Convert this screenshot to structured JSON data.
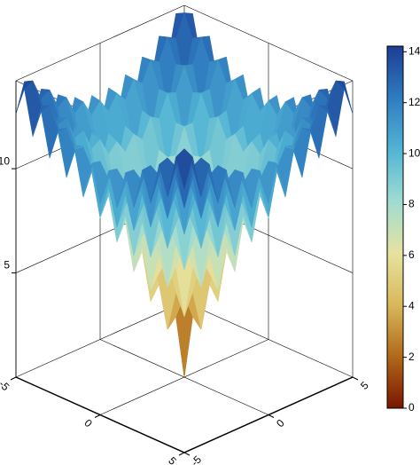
{
  "chart_data": {
    "type": "surface",
    "x": [
      -5,
      -4.5,
      -4,
      -3.5,
      -3,
      -2.5,
      -2,
      -1.5,
      -1,
      -0.5,
      0,
      0.5,
      1,
      1.5,
      2,
      2.5,
      3,
      3.5,
      4,
      4.5,
      5
    ],
    "y": [
      -5,
      -4.5,
      -4,
      -3.5,
      -3,
      -2.5,
      -2,
      -1.5,
      -1,
      -0.5,
      0,
      0.5,
      1,
      1.5,
      2,
      2.5,
      3,
      3.5,
      4,
      4.5,
      5
    ],
    "z": [
      [
        12.64,
        14.0,
        11.91,
        13.28,
        11.23,
        12.65,
        10.66,
        12.16,
        10.28,
        11.89,
        10.14,
        11.89,
        10.28,
        12.16,
        10.66,
        12.65,
        11.23,
        13.28,
        11.91,
        14.0,
        12.64
      ],
      [
        14.0,
        14.22,
        13.18,
        13.42,
        12.41,
        12.69,
        11.75,
        12.12,
        11.3,
        11.81,
        11.13,
        11.81,
        11.3,
        12.12,
        11.75,
        12.69,
        12.41,
        13.42,
        13.18,
        14.22,
        14.0
      ],
      [
        11.91,
        13.18,
        11.01,
        12.29,
        10.14,
        11.46,
        9.37,
        10.79,
        8.84,
        10.41,
        8.64,
        10.41,
        8.84,
        10.79,
        9.37,
        11.46,
        10.14,
        12.29,
        11.01,
        13.18,
        11.91
      ],
      [
        13.28,
        13.42,
        12.29,
        12.42,
        11.3,
        11.46,
        10.41,
        10.68,
        9.77,
        10.22,
        9.53,
        10.22,
        9.77,
        10.68,
        10.41,
        11.46,
        11.3,
        12.42,
        12.29,
        13.42,
        13.28
      ],
      [
        11.23,
        12.41,
        10.14,
        11.3,
        9.02,
        10.21,
        7.99,
        9.27,
        7.21,
        8.71,
        6.92,
        8.71,
        7.21,
        9.27,
        7.99,
        10.21,
        9.02,
        11.3,
        10.14,
        12.41,
        11.23
      ],
      [
        12.65,
        12.69,
        11.46,
        11.46,
        10.21,
        10.22,
        9.0,
        9.11,
        8.05,
        8.4,
        7.67,
        8.4,
        8.05,
        9.11,
        9.0,
        10.22,
        10.21,
        11.46,
        11.46,
        12.69,
        12.65
      ],
      [
        10.66,
        11.75,
        9.37,
        10.41,
        7.99,
        9.0,
        6.59,
        7.67,
        5.42,
        6.78,
        4.93,
        6.78,
        5.42,
        7.67,
        6.59,
        9.0,
        7.99,
        10.41,
        9.37,
        11.75,
        10.66
      ],
      [
        12.16,
        12.12,
        10.79,
        10.68,
        9.27,
        9.11,
        7.67,
        7.53,
        6.22,
        6.36,
        5.54,
        6.36,
        6.22,
        7.53,
        7.67,
        9.11,
        9.27,
        10.68,
        10.79,
        12.12,
        12.16
      ],
      [
        10.28,
        11.3,
        8.84,
        9.77,
        7.21,
        8.05,
        5.42,
        6.22,
        3.63,
        4.64,
        2.64,
        4.64,
        3.63,
        6.22,
        5.42,
        8.05,
        7.21,
        9.77,
        8.84,
        11.3,
        10.28
      ],
      [
        11.89,
        11.81,
        10.41,
        10.22,
        8.71,
        8.4,
        6.78,
        6.36,
        4.64,
        4.25,
        3.08,
        4.25,
        4.64,
        6.36,
        6.78,
        8.4,
        8.71,
        10.22,
        10.41,
        11.81,
        11.89
      ],
      [
        10.14,
        11.13,
        8.64,
        9.53,
        6.92,
        7.67,
        4.93,
        5.54,
        2.64,
        3.08,
        0,
        3.08,
        2.64,
        5.54,
        4.93,
        7.67,
        6.92,
        9.53,
        8.64,
        11.13,
        10.14
      ],
      [
        11.89,
        11.81,
        10.41,
        10.22,
        8.71,
        8.4,
        6.78,
        6.36,
        4.64,
        4.25,
        3.08,
        4.25,
        4.64,
        6.36,
        6.78,
        8.4,
        8.71,
        10.22,
        10.41,
        11.81,
        11.89
      ],
      [
        10.28,
        11.3,
        8.84,
        9.77,
        7.21,
        8.05,
        5.42,
        6.22,
        3.63,
        4.64,
        2.64,
        4.64,
        3.63,
        6.22,
        5.42,
        8.05,
        7.21,
        9.77,
        8.84,
        11.3,
        10.28
      ],
      [
        12.16,
        12.12,
        10.79,
        10.68,
        9.27,
        9.11,
        7.67,
        7.53,
        6.22,
        6.36,
        5.54,
        6.36,
        6.22,
        7.53,
        7.67,
        9.11,
        9.27,
        10.68,
        10.79,
        12.12,
        12.16
      ],
      [
        10.66,
        11.75,
        9.37,
        10.41,
        7.99,
        9.0,
        6.59,
        7.67,
        5.42,
        6.78,
        4.93,
        6.78,
        5.42,
        7.67,
        6.59,
        9.0,
        7.99,
        10.41,
        9.37,
        11.75,
        10.66
      ],
      [
        12.65,
        12.69,
        11.46,
        11.46,
        10.21,
        10.22,
        9.0,
        9.11,
        8.05,
        8.4,
        7.67,
        8.4,
        8.05,
        9.11,
        9.0,
        10.22,
        10.21,
        11.46,
        11.46,
        12.69,
        12.65
      ],
      [
        11.23,
        12.41,
        10.14,
        11.3,
        9.02,
        10.21,
        7.99,
        9.27,
        7.21,
        8.71,
        6.92,
        8.71,
        7.21,
        9.27,
        7.99,
        10.21,
        9.02,
        11.3,
        10.14,
        12.41,
        11.23
      ],
      [
        13.28,
        13.42,
        12.29,
        12.42,
        11.3,
        11.46,
        10.41,
        10.68,
        9.77,
        10.22,
        9.53,
        10.22,
        9.77,
        10.68,
        10.41,
        11.46,
        11.3,
        12.42,
        12.29,
        13.42,
        13.28
      ],
      [
        11.91,
        13.18,
        11.01,
        12.29,
        10.14,
        11.46,
        9.37,
        10.79,
        8.84,
        10.41,
        8.64,
        10.41,
        8.84,
        10.79,
        9.37,
        11.46,
        10.14,
        12.29,
        11.01,
        13.18,
        11.91
      ],
      [
        14.0,
        14.22,
        13.18,
        13.42,
        12.41,
        12.69,
        11.75,
        12.12,
        11.3,
        11.81,
        11.13,
        11.81,
        11.3,
        12.12,
        11.75,
        12.69,
        12.41,
        13.42,
        13.18,
        14.22,
        14.0
      ],
      [
        12.64,
        14.0,
        11.91,
        13.28,
        11.23,
        12.65,
        10.66,
        12.16,
        10.28,
        11.89,
        10.14,
        11.89,
        10.28,
        12.16,
        10.66,
        12.65,
        11.23,
        13.28,
        11.91,
        14.0,
        12.64
      ]
    ],
    "xlim": [
      -5,
      5
    ],
    "ylim": [
      -5,
      5
    ],
    "zlim": [
      0,
      14.22
    ],
    "xticks": [
      -5,
      0,
      5
    ],
    "yticks": [
      -5,
      0,
      5
    ],
    "zticks": [
      5,
      10
    ],
    "clim": [
      0,
      14.22
    ],
    "cticks": [
      0,
      2,
      4,
      6,
      8,
      10,
      12,
      14
    ],
    "colormap": [
      "#7a1500",
      "#b0691a",
      "#d9b85a",
      "#e6e3a0",
      "#9fdcd2",
      "#52b4d4",
      "#2f7cc0",
      "#1b3e93"
    ],
    "grid": true
  }
}
